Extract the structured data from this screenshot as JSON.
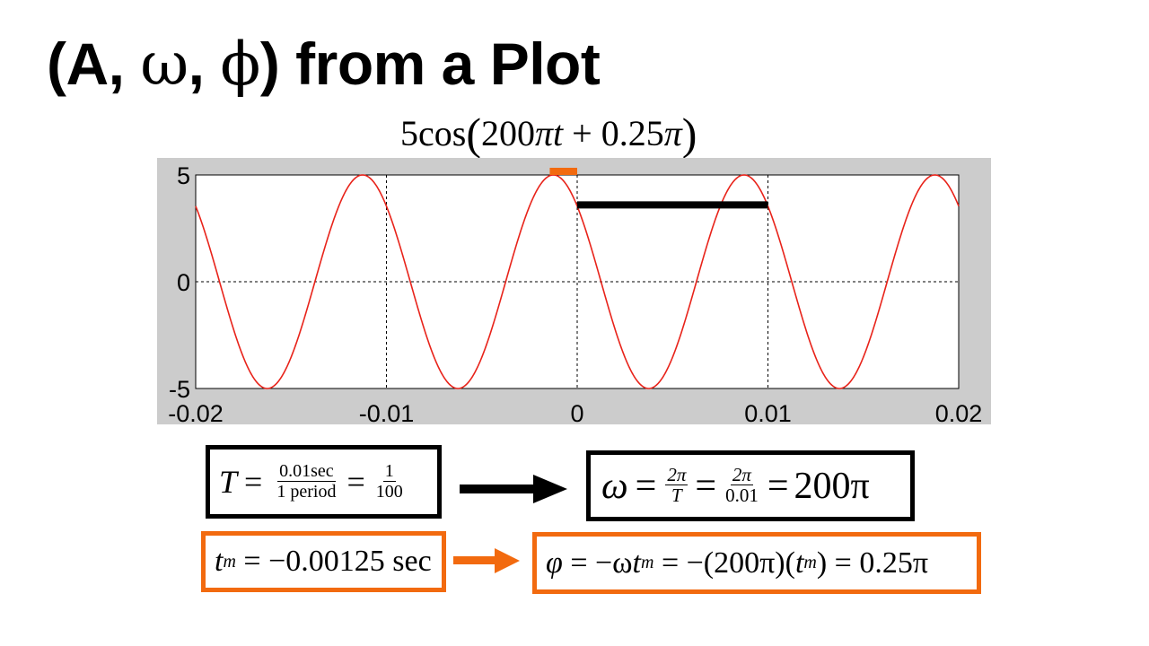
{
  "slide": {
    "title_prefix": "(A, ",
    "title_omega": "ω",
    "title_sep": ", ",
    "title_phi": "ϕ",
    "title_suffix": ") from a Plot"
  },
  "chart_data": {
    "type": "line",
    "title_parts": {
      "amp": "5cos",
      "open": "(",
      "body_coef": "200",
      "body_pi": "π",
      "body_t": "t",
      "body_rest": " + 0.25",
      "body_pi2": "π",
      "close": ")"
    },
    "function": {
      "amplitude": 5,
      "omega_over_pi": 200,
      "phase_over_pi": 0.25
    },
    "xlim": [
      -0.02,
      0.02
    ],
    "ylim": [
      -5,
      5
    ],
    "xticks": [
      -0.02,
      -0.01,
      0,
      0.01,
      0.02
    ],
    "xtick_labels": [
      "-0.02",
      "-0.01",
      "0",
      "0.01",
      "0.02"
    ],
    "yticks": [
      5,
      0,
      -5
    ],
    "ytick_labels": [
      "5",
      "0",
      "-5"
    ],
    "grid": true,
    "line_color": "#e8231a",
    "background_color": "#cccccc",
    "period_marker": {
      "x_start": 0,
      "x_end": 0.01,
      "y": 3.6,
      "color": "#000000"
    },
    "peak_marker": {
      "x_start": -0.00125,
      "x_end": 0,
      "y": 5,
      "color": "#f26a0f"
    }
  },
  "equations": {
    "period": {
      "lhs": "T",
      "eq1": "=",
      "num1": "0.01sec",
      "den1": "1 period",
      "eq2": "=",
      "num2": "1",
      "den2": "100"
    },
    "omega": {
      "lhs": "ω",
      "eq1": "=",
      "num1": "2π",
      "den1": "T",
      "eq2": "=",
      "num2": "2π",
      "den2": "0.01",
      "eq3": "=",
      "result": "200π"
    },
    "tm": {
      "lhs": "t",
      "sub": "m",
      "rest": " = −0.00125 sec"
    },
    "phase": {
      "lhs": "φ",
      "part1": " = −ω",
      "t1": "t",
      "sub1": "m",
      "part2": " = −(200π)(",
      "t2": "t",
      "sub2": "m",
      "part3": ") = 0.25π"
    }
  },
  "colors": {
    "accent_orange": "#f26a0f",
    "black": "#000000"
  }
}
